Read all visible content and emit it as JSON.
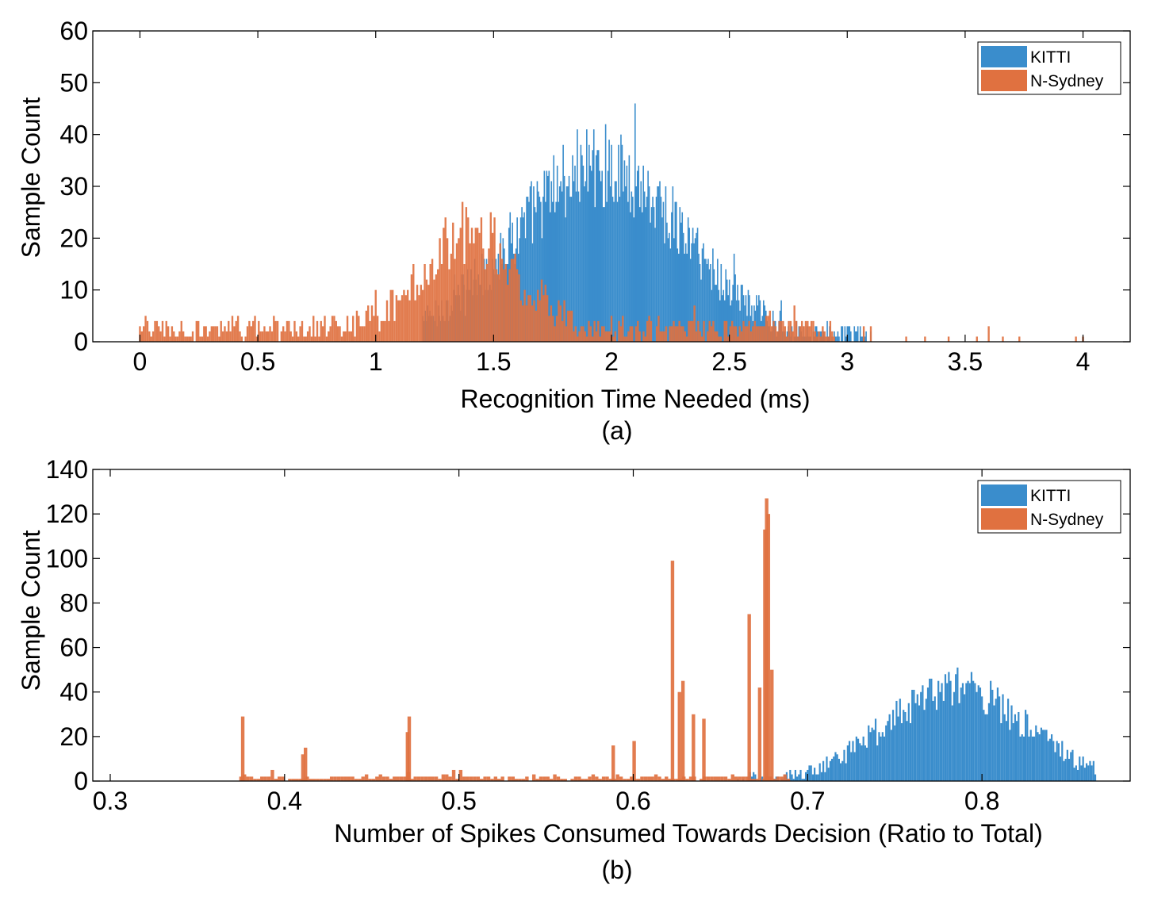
{
  "chart_data": [
    {
      "type": "bar",
      "panel_label": "(a)",
      "xlabel": "Recognition Time Needed (ms)",
      "ylabel": "Sample Count",
      "xlim": [
        -0.2,
        4.2
      ],
      "ylim": [
        0,
        60
      ],
      "xticks": [
        0,
        0.5,
        1,
        1.5,
        2,
        2.5,
        3,
        3.5,
        4
      ],
      "xtick_labels": [
        "0",
        "0.5",
        "1",
        "1.5",
        "2",
        "2.5",
        "3",
        "3.5",
        "4"
      ],
      "yticks": [
        0,
        10,
        20,
        30,
        40,
        50,
        60
      ],
      "ytick_labels": [
        "0",
        "10",
        "20",
        "30",
        "40",
        "50",
        "60"
      ],
      "legend_position": "top-right",
      "grid": false,
      "series": [
        {
          "name": "KITTI",
          "color": "#3A8DCC",
          "profile": {
            "bin_width": 0.005,
            "x_start": 1.2,
            "x_end": 3.1,
            "center": 1.95,
            "spread": 0.36,
            "peak": 34,
            "max": 52,
            "noise": 8
          }
        },
        {
          "name": "N-Sydney",
          "color": "#E07140",
          "opacity": 0.92,
          "profile": {
            "bin_width": 0.008,
            "x_start": 0.0,
            "x_end": 2.95,
            "center": 1.4,
            "spread": 0.2,
            "peak": 18,
            "max": 31,
            "base": 2.5,
            "noise": 6
          },
          "outliers": [
            [
              3.07,
              3
            ],
            [
              3.1,
              3
            ],
            [
              3.25,
              1
            ],
            [
              3.33,
              1
            ],
            [
              3.43,
              1
            ],
            [
              3.55,
              1
            ],
            [
              3.6,
              3
            ],
            [
              3.66,
              1
            ],
            [
              3.73,
              1
            ],
            [
              3.97,
              1
            ],
            [
              4.0,
              1
            ]
          ]
        }
      ]
    },
    {
      "type": "bar",
      "panel_label": "(b)",
      "xlabel": "Number of Spikes Consumed Towards Decision (Ratio to Total)",
      "ylabel": "Sample Count",
      "xlim": [
        0.29,
        0.885
      ],
      "ylim": [
        0,
        140
      ],
      "xticks": [
        0.3,
        0.4,
        0.5,
        0.6,
        0.7,
        0.8
      ],
      "xtick_labels": [
        "0.3",
        "0.4",
        "0.5",
        "0.6",
        "0.7",
        "0.8"
      ],
      "yticks": [
        0,
        20,
        40,
        60,
        80,
        100,
        120,
        140
      ],
      "ytick_labels": [
        "0",
        "20",
        "40",
        "60",
        "80",
        "100",
        "120",
        "140"
      ],
      "legend_position": "top-right",
      "grid": false,
      "series": [
        {
          "name": "KITTI",
          "color": "#3A8DCC",
          "profile": {
            "bin_width": 0.001,
            "x_start": 0.66,
            "x_end": 0.865,
            "center": 0.785,
            "spread": 0.04,
            "peak": 42,
            "max": 65,
            "noise": 9
          }
        },
        {
          "name": "N-Sydney",
          "color": "#E07140",
          "opacity": 0.92,
          "profile": {
            "bin_width": 0.002,
            "x_start": 0.375,
            "x_end": 0.69,
            "base": 1.5,
            "noise": 3
          },
          "spikes": [
            [
              0.376,
              29
            ],
            [
              0.4105,
              12
            ],
            [
              0.412,
              15
            ],
            [
              0.4705,
              22
            ],
            [
              0.4715,
              29
            ],
            [
              0.5885,
              16
            ],
            [
              0.6005,
              18
            ],
            [
              0.6225,
              99
            ],
            [
              0.6265,
              40
            ],
            [
              0.6285,
              45
            ],
            [
              0.6345,
              30
            ],
            [
              0.6405,
              28
            ],
            [
              0.6665,
              75
            ],
            [
              0.6725,
              42
            ],
            [
              0.6755,
              113
            ],
            [
              0.6765,
              127
            ],
            [
              0.6775,
              120
            ],
            [
              0.6795,
              50
            ]
          ]
        }
      ]
    }
  ]
}
